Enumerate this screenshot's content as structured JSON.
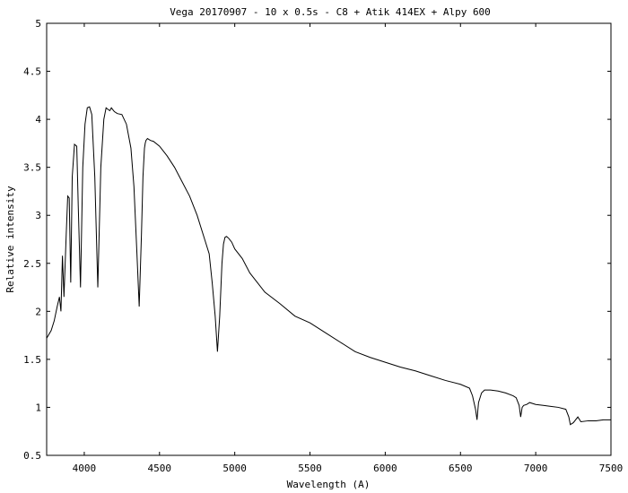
{
  "chart_data": {
    "type": "line",
    "title": "Vega 20170907 - 10 x 0.5s - C8 + Atik 414EX + Alpy 600",
    "xlabel": "Wavelength (A)",
    "ylabel": "Relative intensity",
    "xlim": [
      3750,
      7500
    ],
    "ylim": [
      0.5,
      5
    ],
    "xticks": [
      4000,
      4500,
      5000,
      5500,
      6000,
      6500,
      7000,
      7500
    ],
    "yticks": [
      0.5,
      1,
      1.5,
      2,
      2.5,
      3,
      3.5,
      4,
      4.5,
      5
    ],
    "ytick_labels": [
      "0.5",
      "1",
      "1.5",
      "2",
      "2.5",
      "3",
      "3.5",
      "4",
      "4.5",
      "5"
    ],
    "grid": false,
    "legend": "none",
    "line_color": "#000000",
    "series": [
      {
        "x": [
          3750,
          3780,
          3800,
          3820,
          3835,
          3845,
          3855,
          3865,
          3880,
          3890,
          3900,
          3910,
          3920,
          3935,
          3950,
          3960,
          3975,
          3990,
          4005,
          4020,
          4035,
          4050,
          4070,
          4090,
          4110,
          4130,
          4145,
          4160,
          4170,
          4180,
          4200,
          4220,
          4250,
          4280,
          4310,
          4330,
          4350,
          4365,
          4380,
          4390,
          4400,
          4405,
          4410,
          4420,
          4440,
          4460,
          4500,
          4550,
          4600,
          4650,
          4700,
          4750,
          4800,
          4830,
          4850,
          4870,
          4885,
          4900,
          4915,
          4925,
          4935,
          4945,
          4960,
          4980,
          5000,
          5050,
          5100,
          5150,
          5200,
          5300,
          5400,
          5500,
          5600,
          5700,
          5800,
          5900,
          6000,
          6100,
          6200,
          6300,
          6400,
          6500,
          6560,
          6580,
          6600,
          6610,
          6620,
          6640,
          6660,
          6700,
          6750,
          6800,
          6850,
          6870,
          6890,
          6900,
          6910,
          6920,
          6940,
          6960,
          7000,
          7050,
          7100,
          7150,
          7200,
          7220,
          7230,
          7250,
          7280,
          7300,
          7350,
          7400,
          7450,
          7500
        ],
        "y": [
          1.72,
          1.8,
          1.9,
          2.05,
          2.15,
          2.0,
          2.58,
          2.15,
          2.8,
          3.2,
          3.18,
          2.3,
          3.4,
          3.74,
          3.72,
          3.1,
          2.25,
          3.5,
          3.95,
          4.12,
          4.13,
          4.05,
          3.4,
          2.25,
          3.5,
          4.0,
          4.12,
          4.1,
          4.09,
          4.12,
          4.08,
          4.06,
          4.05,
          3.95,
          3.7,
          3.3,
          2.6,
          2.05,
          2.8,
          3.4,
          3.7,
          3.75,
          3.78,
          3.8,
          3.78,
          3.77,
          3.72,
          3.62,
          3.5,
          3.35,
          3.2,
          3.0,
          2.75,
          2.6,
          2.3,
          1.95,
          1.58,
          1.95,
          2.5,
          2.7,
          2.77,
          2.78,
          2.76,
          2.72,
          2.65,
          2.55,
          2.4,
          2.3,
          2.2,
          2.08,
          1.95,
          1.88,
          1.78,
          1.68,
          1.58,
          1.52,
          1.47,
          1.42,
          1.38,
          1.33,
          1.28,
          1.24,
          1.2,
          1.12,
          0.98,
          0.87,
          1.05,
          1.15,
          1.18,
          1.18,
          1.17,
          1.15,
          1.12,
          1.1,
          1.02,
          0.9,
          1.0,
          1.02,
          1.03,
          1.05,
          1.03,
          1.02,
          1.01,
          1.0,
          0.98,
          0.9,
          0.82,
          0.84,
          0.9,
          0.85,
          0.86,
          0.86,
          0.87,
          0.87
        ]
      }
    ]
  }
}
